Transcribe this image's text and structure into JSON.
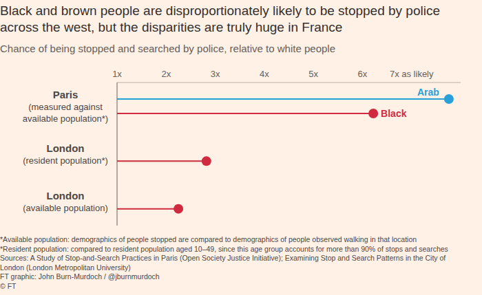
{
  "chart_data": {
    "type": "lollipop",
    "title": "Black and brown people are disproportionately likely to be stopped by police across the west, but the disparities are truly huge in France",
    "subtitle": "Chance of being stopped and searched by police, relative to white people",
    "orientation": "horizontal",
    "categories": [
      "Paris (measured against available population*)",
      "London (resident population*)",
      "London (available population)"
    ],
    "series": [
      {
        "name": "Arab",
        "color": "#2a9fd8",
        "values": [
          7.76,
          null,
          null
        ]
      },
      {
        "name": "Black",
        "color": "#cf2a3f",
        "values": [
          6.22,
          2.82,
          2.25
        ]
      }
    ],
    "xlim": [
      1,
      8
    ],
    "xticks": [
      {
        "value": 1,
        "label": "1x"
      },
      {
        "value": 2,
        "label": "2x"
      },
      {
        "value": 3,
        "label": "3x"
      },
      {
        "value": 4,
        "label": "4x"
      },
      {
        "value": 5,
        "label": "5x"
      },
      {
        "value": 6,
        "label": "6x"
      },
      {
        "value": 7,
        "label": "7x as likely"
      }
    ],
    "grid": false,
    "notes": [
      "*Available population: demographics of people stopped are compared to demographics of people observed walking in that location",
      "*Resident population: compared to resident population aged 10–49, since this age group accounts for more than 90% of stops and searches"
    ],
    "sources": "Sources: A Study of Stop-and-Search Practices in Paris (Open Society Justice Initiative); Examining Stop and Search Patterns in the City of London (London Metropolitan University)",
    "credit": "FT graphic: John Burn-Murdoch / @jburnmurdoch",
    "copyright": "© FT"
  }
}
